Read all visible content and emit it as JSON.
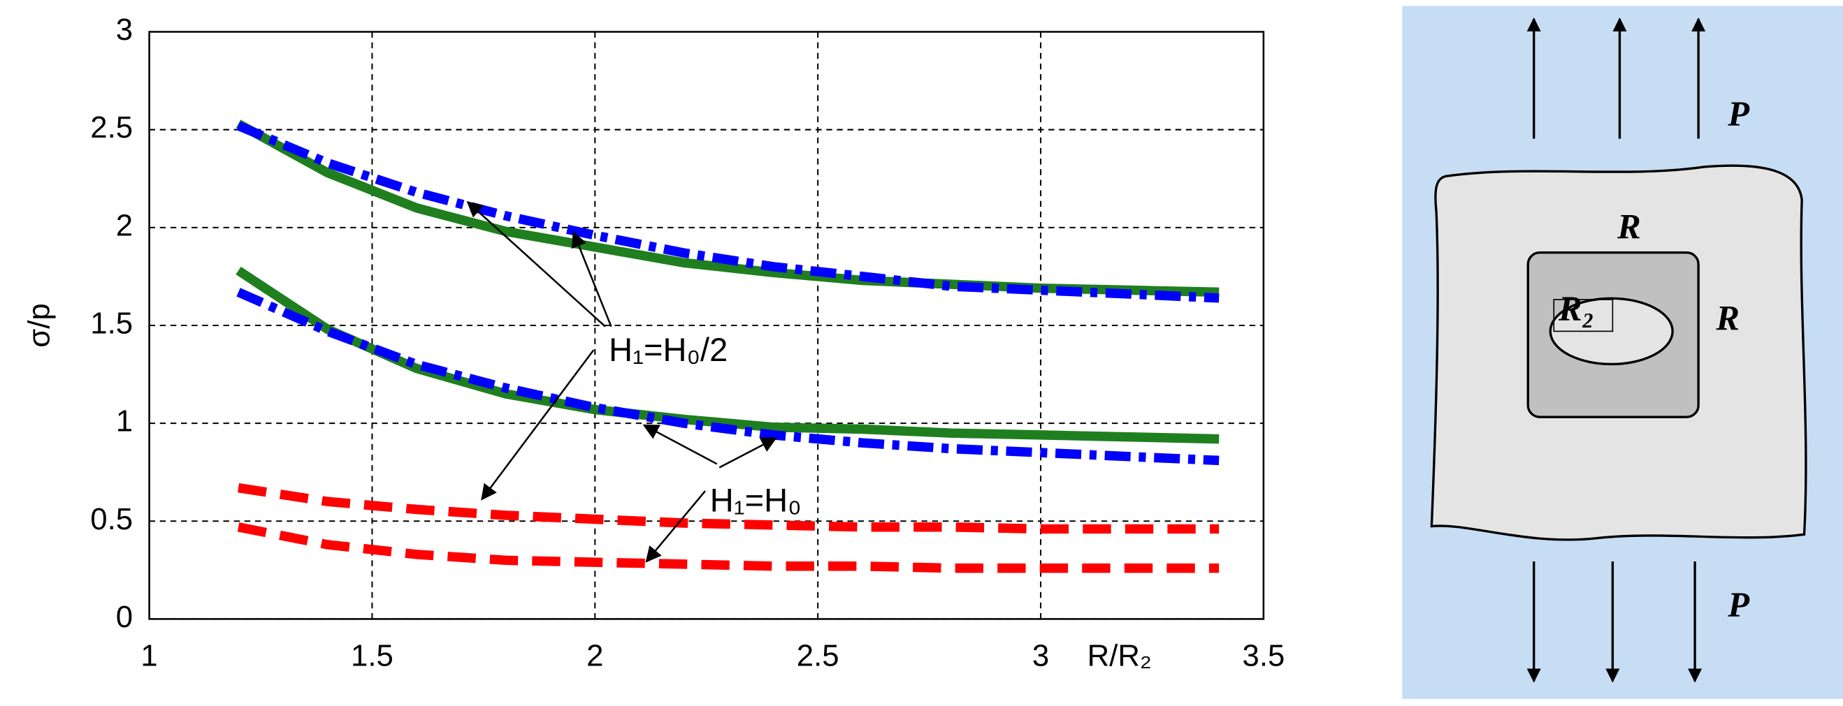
{
  "chart_data": {
    "type": "line",
    "x": [
      1.2,
      1.4,
      1.6,
      1.8,
      2.0,
      2.2,
      2.4,
      2.6,
      2.8,
      3.0,
      3.2,
      3.4
    ],
    "series": [
      {
        "color": "#1f7f1f",
        "style": "solid",
        "values": [
          2.53,
          2.28,
          2.1,
          1.98,
          1.9,
          1.82,
          1.77,
          1.73,
          1.71,
          1.69,
          1.68,
          1.67
        ]
      },
      {
        "color": "#0000ff",
        "style": "dashdot",
        "values": [
          2.52,
          2.33,
          2.18,
          2.06,
          1.96,
          1.87,
          1.8,
          1.75,
          1.7,
          1.68,
          1.66,
          1.64
        ]
      },
      {
        "color": "#1f7f1f",
        "style": "solid",
        "values": [
          1.78,
          1.48,
          1.28,
          1.15,
          1.07,
          1.02,
          0.98,
          0.97,
          0.95,
          0.94,
          0.93,
          0.92
        ]
      },
      {
        "color": "#0000ff",
        "style": "dashdot",
        "values": [
          1.67,
          1.47,
          1.3,
          1.18,
          1.08,
          1.0,
          0.94,
          0.9,
          0.87,
          0.85,
          0.83,
          0.81
        ]
      },
      {
        "color": "#ff0000",
        "style": "dashed",
        "values": [
          0.67,
          0.6,
          0.56,
          0.53,
          0.51,
          0.49,
          0.48,
          0.47,
          0.47,
          0.46,
          0.46,
          0.46
        ]
      },
      {
        "color": "#ff0000",
        "style": "dashed",
        "values": [
          0.47,
          0.38,
          0.33,
          0.3,
          0.29,
          0.28,
          0.27,
          0.27,
          0.26,
          0.26,
          0.26,
          0.26
        ]
      }
    ],
    "xlim": [
      1,
      3.5
    ],
    "xticks": [
      1,
      1.5,
      2,
      2.5,
      3,
      3.5
    ],
    "ylim": [
      0,
      3
    ],
    "yticks": [
      0,
      0.5,
      1,
      1.5,
      2,
      2.5,
      3
    ],
    "grid": true,
    "y_label": "σ/p",
    "x_label": "R/R₂",
    "annotations": [
      "H₁=H₀/2",
      "H₁=H₀"
    ]
  },
  "diagram": {
    "load_top": "P",
    "load_bottom": "P",
    "outer_top": "R",
    "outer_right": "R",
    "hole_radius": "R₂"
  }
}
